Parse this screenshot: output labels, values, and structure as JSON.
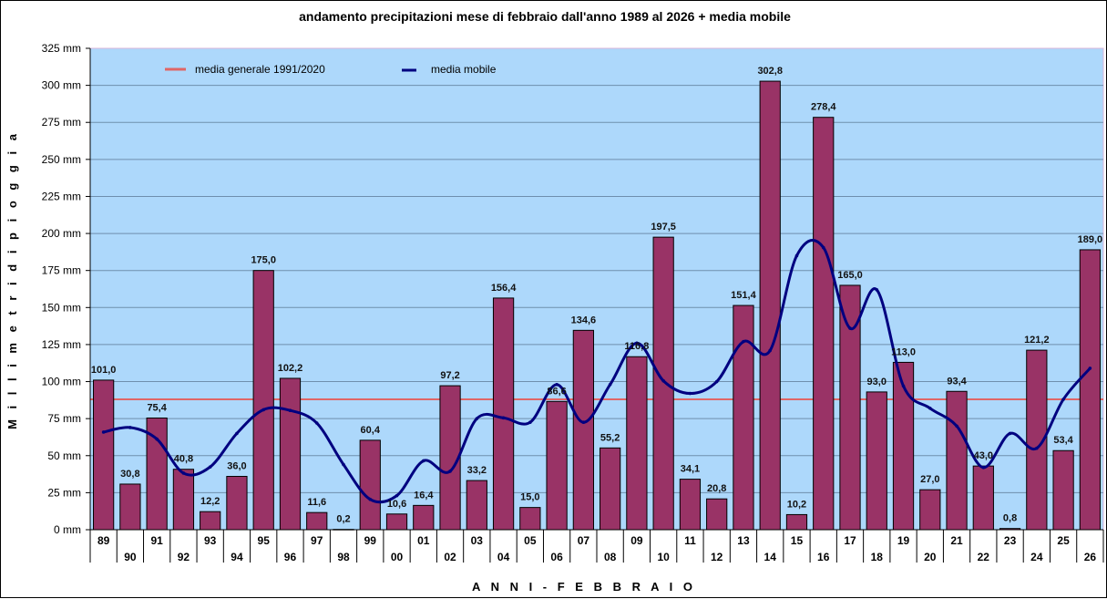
{
  "chart_data": {
    "type": "bar",
    "title": "andamento precipitazioni mese di febbraio dall'anno 1989 al 2026 + media mobile",
    "xlabel": "A N N I  -  F E B B R A I O",
    "ylabel": "M i l l i m e t r i    d i    p i o g g i a",
    "ylim": [
      0,
      325
    ],
    "yticks": [
      0,
      25,
      50,
      75,
      100,
      125,
      150,
      175,
      200,
      225,
      250,
      275,
      300,
      325
    ],
    "ytick_suffix": " mm",
    "grid": true,
    "legend_position": "top-left",
    "categories": [
      "89",
      "90",
      "91",
      "92",
      "93",
      "94",
      "95",
      "96",
      "97",
      "98",
      "99",
      "00",
      "01",
      "02",
      "03",
      "04",
      "05",
      "06",
      "07",
      "08",
      "09",
      "10",
      "11",
      "12",
      "13",
      "14",
      "15",
      "16",
      "17",
      "18",
      "19",
      "20",
      "21",
      "22",
      "23",
      "24",
      "25",
      "26"
    ],
    "series": [
      {
        "name": "precipitazioni",
        "type": "bar",
        "color": "#993366",
        "values": [
          101.0,
          30.8,
          75.4,
          40.8,
          12.2,
          36.0,
          175.0,
          102.2,
          11.6,
          0.2,
          60.4,
          10.6,
          16.4,
          97.2,
          33.2,
          156.4,
          15.0,
          86.6,
          134.6,
          55.2,
          116.8,
          197.5,
          34.1,
          20.8,
          151.4,
          302.8,
          10.2,
          278.4,
          165.0,
          93.0,
          113.0,
          27.0,
          93.4,
          43.0,
          0.8,
          121.2,
          53.4,
          189.0
        ],
        "labels": [
          "101,0",
          "30,8",
          "75,4",
          "40,8",
          "12,2",
          "36,0",
          "175,0",
          "102,2",
          "11,6",
          "0,2",
          "60,4",
          "10,6",
          "16,4",
          "97,2",
          "33,2",
          "156,4",
          "15,0",
          "86,6",
          "134,6",
          "55,2",
          "116,8",
          "197,5",
          "34,1",
          "20,8",
          "151,4",
          "302,8",
          "10,2",
          "278,4",
          "165,0",
          "93,0",
          "113,0",
          "27,0",
          "93,4",
          "43,0",
          "0,8",
          "121,2",
          "53,4",
          "189,0"
        ]
      },
      {
        "name": "media generale 1991/2020",
        "type": "line",
        "color": "#e06666",
        "values": [
          88.0,
          88.0
        ]
      },
      {
        "name": "media mobile",
        "type": "line",
        "color": "#000080",
        "values": [
          65.9,
          69.0,
          61.2,
          38.2,
          42.4,
          65.0,
          81.0,
          80.5,
          72.0,
          44.0,
          20.5,
          23.0,
          46.5,
          39.5,
          75.0,
          75.5,
          72.5,
          98.0,
          72.5,
          98.0,
          126.0,
          100.5,
          92.0,
          100.0,
          127.0,
          121.0,
          185.0,
          190.5,
          136.0,
          162.0,
          97.0,
          82.0,
          70.0,
          42.0,
          65.0,
          55.0,
          88.0,
          109.0
        ]
      }
    ]
  },
  "legend": {
    "items": [
      {
        "label": "media generale 1991/2020",
        "color": "#e06666"
      },
      {
        "label": "media mobile",
        "color": "#000080"
      }
    ]
  },
  "colors": {
    "plot_background": "#add8fb",
    "gridline": "#6f8fad",
    "bar_fill": "#993366",
    "bar_stroke": "#000000"
  }
}
